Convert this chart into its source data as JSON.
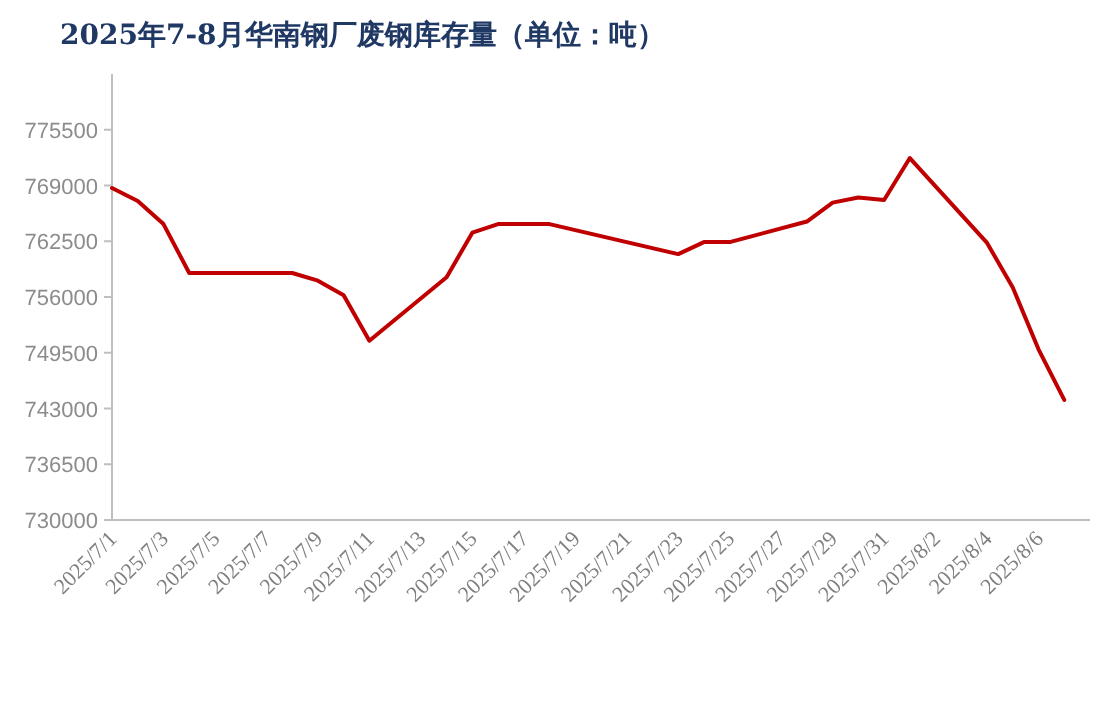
{
  "chart_data": {
    "type": "line",
    "title": "2025年7-8月华南钢厂废钢库存量（单位：吨）",
    "x": [
      "2025-07-01",
      "2025-07-02",
      "2025-07-03",
      "2025-07-04",
      "2025-07-07",
      "2025-07-08",
      "2025-07-09",
      "2025-07-10",
      "2025-07-11",
      "2025-07-14",
      "2025-07-15",
      "2025-07-16",
      "2025-07-17",
      "2025-07-18",
      "2025-07-23",
      "2025-07-24",
      "2025-07-25",
      "2025-07-28",
      "2025-07-29",
      "2025-07-30",
      "2025-07-31",
      "2025-08-01",
      "2025-08-04",
      "2025-08-05",
      "2025-08-06",
      "2025-08-07"
    ],
    "series": [
      {
        "color": "#c00000",
        "values": [
          768700,
          767200,
          764500,
          758800,
          758800,
          758800,
          757900,
          756200,
          750900,
          758300,
          763500,
          764500,
          764500,
          764500,
          761000,
          762400,
          762400,
          764800,
          767000,
          767600,
          767300,
          772200,
          762300,
          757100,
          749900,
          744000
        ]
      }
    ],
    "xlim": [
      "2025-07-01",
      "2025-08-08"
    ],
    "xticks": [
      {
        "value": "2025-07-01",
        "label": "2025/7/1"
      },
      {
        "value": "2025-07-03",
        "label": "2025/7/3"
      },
      {
        "value": "2025-07-05",
        "label": "2025/7/5"
      },
      {
        "value": "2025-07-07",
        "label": "2025/7/7"
      },
      {
        "value": "2025-07-09",
        "label": "2025/7/9"
      },
      {
        "value": "2025-07-11",
        "label": "2025/7/11"
      },
      {
        "value": "2025-07-13",
        "label": "2025/7/13"
      },
      {
        "value": "2025-07-15",
        "label": "2025/7/15"
      },
      {
        "value": "2025-07-17",
        "label": "2025/7/17"
      },
      {
        "value": "2025-07-19",
        "label": "2025/7/19"
      },
      {
        "value": "2025-07-21",
        "label": "2025/7/21"
      },
      {
        "value": "2025-07-23",
        "label": "2025/7/23"
      },
      {
        "value": "2025-07-25",
        "label": "2025/7/25"
      },
      {
        "value": "2025-07-27",
        "label": "2025/7/27"
      },
      {
        "value": "2025-07-29",
        "label": "2025/7/29"
      },
      {
        "value": "2025-07-31",
        "label": "2025/7/31"
      },
      {
        "value": "2025-08-02",
        "label": "2025/8/2"
      },
      {
        "value": "2025-08-04",
        "label": "2025/8/4"
      },
      {
        "value": "2025-08-06",
        "label": "2025/8/6"
      }
    ],
    "ylim": [
      730000,
      782000
    ],
    "yticks": [
      730000,
      736500,
      743000,
      749500,
      756000,
      762500,
      769000,
      775500
    ],
    "grid": false,
    "marker": "none",
    "line_style": "solid"
  }
}
